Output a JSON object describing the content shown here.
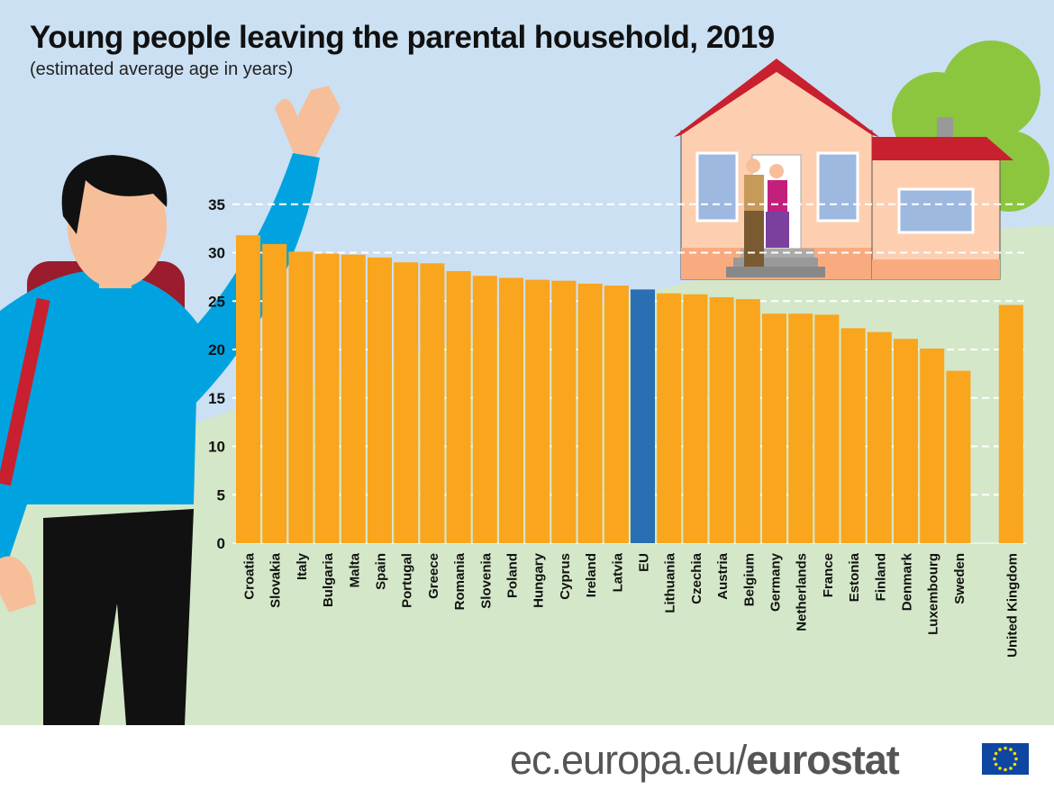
{
  "header": {
    "title": "Young people leaving the parental household, 2019",
    "subtitle": "(estimated average age in years)"
  },
  "footer": {
    "site": "ec.europa.eu/",
    "brand": "eurostat"
  },
  "colors": {
    "bar": "#f9a51d",
    "eu_bar": "#2a6fb3",
    "sky": "#cbe0f3",
    "hill": "#d4e7c8"
  },
  "chart_data": {
    "type": "bar",
    "title": "Young people leaving the parental household, 2019",
    "subtitle": "(estimated average age in years)",
    "xlabel": "",
    "ylabel": "",
    "ylim": [
      0,
      35
    ],
    "yticks": [
      0,
      5,
      10,
      15,
      20,
      25,
      30,
      35
    ],
    "grid": true,
    "categories": [
      "Croatia",
      "Slovakia",
      "Italy",
      "Bulgaria",
      "Malta",
      "Spain",
      "Portugal",
      "Greece",
      "Romania",
      "Slovenia",
      "Poland",
      "Hungary",
      "Cyprus",
      "Ireland",
      "Latvia",
      "EU",
      "Lithuania",
      "Czechia",
      "Austria",
      "Belgium",
      "Germany",
      "Netherlands",
      "France",
      "Estonia",
      "Finland",
      "Denmark",
      "Luxembourg",
      "Sweden",
      "United Kingdom"
    ],
    "values": [
      31.8,
      30.9,
      30.1,
      29.9,
      29.8,
      29.5,
      29.0,
      28.9,
      28.1,
      27.6,
      27.4,
      27.2,
      27.1,
      26.8,
      26.6,
      26.2,
      25.8,
      25.7,
      25.4,
      25.2,
      23.7,
      23.7,
      23.6,
      22.2,
      21.8,
      21.1,
      20.1,
      17.8,
      24.6
    ],
    "highlight": "EU"
  }
}
